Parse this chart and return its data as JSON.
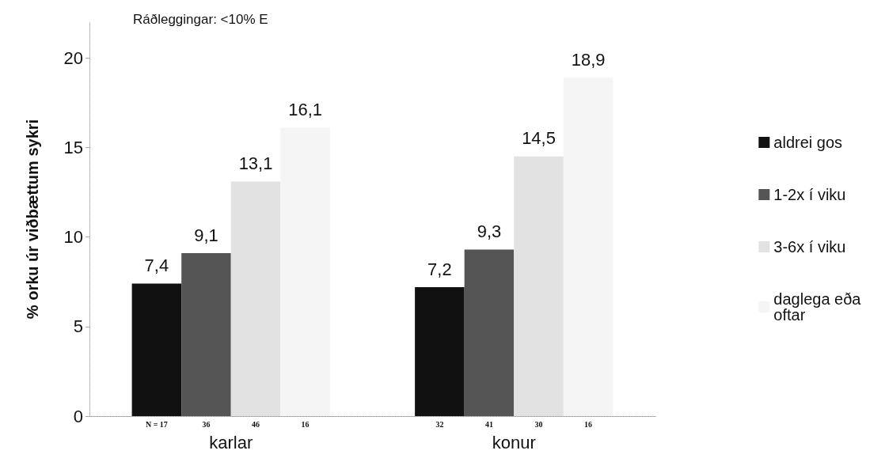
{
  "chart_data": {
    "type": "bar",
    "ylabel": "% orku úr viðbættum sykri",
    "categories": [
      "karlar",
      "konur"
    ],
    "series": [
      {
        "name": "aldrei gos",
        "color": "#111111",
        "values": [
          7.4,
          7.2
        ],
        "value_labels": [
          "7,4",
          "7,2"
        ]
      },
      {
        "name": "1-2x í viku",
        "color": "#555555",
        "values": [
          9.1,
          9.3
        ],
        "value_labels": [
          "9,1",
          "9,3"
        ]
      },
      {
        "name": "3-6x í viku",
        "color": "#e2e2e2",
        "values": [
          13.1,
          14.5
        ],
        "value_labels": [
          "13,1",
          "14,5"
        ]
      },
      {
        "name": "daglega eða oftar",
        "color": "#f5f5f5",
        "values": [
          16.1,
          18.9
        ],
        "value_labels": [
          "16,1",
          "18,9"
        ]
      }
    ],
    "ylim": [
      0,
      22
    ],
    "yticks": [
      0,
      5,
      10,
      15,
      20
    ],
    "grid": false,
    "legend": "right",
    "annotations": [
      "Ráðleggingar: <10% E",
      "N = 17",
      "36",
      "46",
      "16",
      "32",
      "41",
      "30",
      "16"
    ]
  }
}
